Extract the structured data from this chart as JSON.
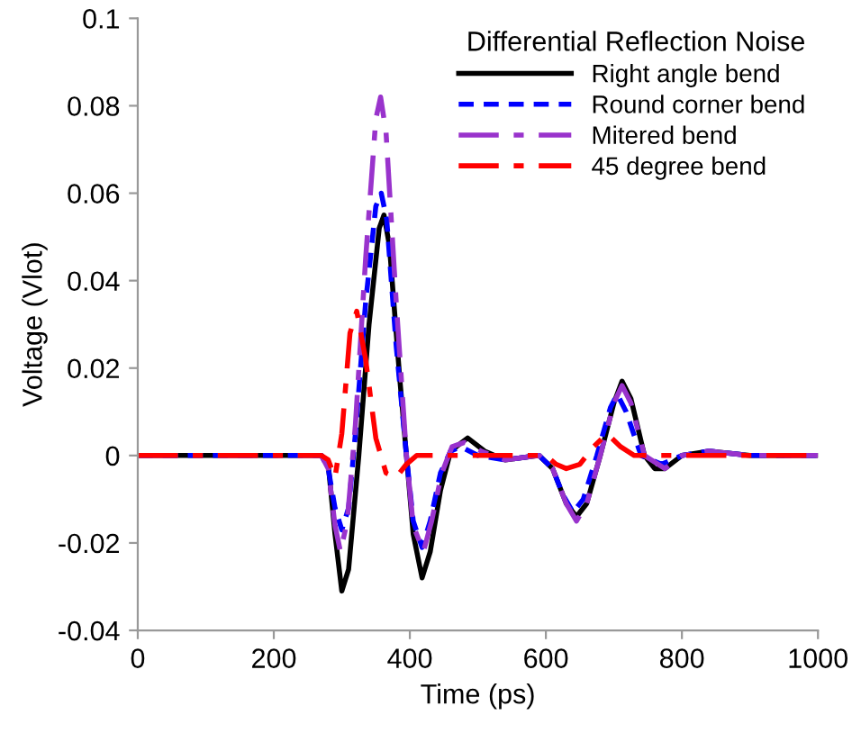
{
  "chart_data": {
    "type": "line",
    "xlabel": "Time (ps)",
    "ylabel": "Voltage (Vlot)",
    "legend_title": "Differential Reflection Noise",
    "legend": "top right",
    "grid": false,
    "xlim": [
      0,
      1000
    ],
    "xticks": [
      0,
      200,
      400,
      600,
      800,
      1000
    ],
    "ylim": [
      -0.04,
      0.1
    ],
    "yticks": [
      -0.04,
      -0.02,
      0,
      0.02,
      0.04,
      0.06,
      0.08,
      0.1
    ],
    "series": [
      {
        "name": "Right angle bend",
        "color": "#000000",
        "line_style": "solid",
        "x": [
          0,
          270,
          280,
          290,
          300,
          310,
          325,
          340,
          355,
          362,
          370,
          385,
          395,
          405,
          418,
          430,
          445,
          460,
          485,
          510,
          540,
          590,
          610,
          630,
          645,
          660,
          680,
          700,
          712,
          725,
          745,
          760,
          775,
          800,
          840,
          900,
          1000
        ],
        "values": [
          0,
          0,
          -0.002,
          -0.018,
          -0.031,
          -0.026,
          0,
          0.03,
          0.052,
          0.055,
          0.048,
          0.018,
          0,
          -0.018,
          -0.028,
          -0.022,
          -0.008,
          0.001,
          0.004,
          0.001,
          -0.001,
          0,
          -0.003,
          -0.011,
          -0.014,
          -0.011,
          0,
          0.012,
          0.017,
          0.013,
          0,
          -0.003,
          -0.003,
          0,
          0.001,
          0,
          0
        ]
      },
      {
        "name": "Round corner bend",
        "color": "#0000ff",
        "line_style": "dashed",
        "x": [
          0,
          270,
          280,
          290,
          300,
          310,
          320,
          335,
          350,
          358,
          366,
          380,
          395,
          405,
          418,
          430,
          445,
          460,
          475,
          500,
          540,
          590,
          610,
          625,
          640,
          655,
          675,
          695,
          705,
          718,
          740,
          770,
          800,
          840,
          900,
          1000
        ],
        "values": [
          0,
          0,
          -0.003,
          -0.012,
          -0.017,
          -0.012,
          0.005,
          0.035,
          0.057,
          0.06,
          0.054,
          0.025,
          0,
          -0.015,
          -0.021,
          -0.015,
          -0.004,
          0.001,
          0.002,
          0,
          -0.001,
          0,
          -0.003,
          -0.009,
          -0.013,
          -0.01,
          0,
          0.011,
          0.014,
          0.01,
          0,
          -0.002,
          0,
          0.001,
          0,
          0
        ]
      },
      {
        "name": "Mitered bend",
        "color": "#9933cc",
        "line_style": "dashdot",
        "x": [
          0,
          270,
          280,
          290,
          298,
          308,
          320,
          335,
          350,
          357,
          365,
          380,
          395,
          405,
          420,
          432,
          447,
          462,
          480,
          505,
          540,
          590,
          610,
          630,
          645,
          660,
          680,
          700,
          712,
          725,
          745,
          775,
          800,
          840,
          900,
          1000
        ],
        "values": [
          0,
          0,
          -0.003,
          -0.016,
          -0.022,
          -0.015,
          0.007,
          0.045,
          0.077,
          0.082,
          0.074,
          0.035,
          0,
          -0.016,
          -0.022,
          -0.015,
          -0.004,
          0.002,
          0.003,
          0.001,
          -0.001,
          0,
          -0.003,
          -0.011,
          -0.015,
          -0.011,
          0,
          0.012,
          0.016,
          0.012,
          0,
          -0.003,
          0,
          0.001,
          0,
          0
        ]
      },
      {
        "name": "45 degree bend",
        "color": "#ff0000",
        "line_style": "dashdot",
        "x": [
          0,
          270,
          280,
          290,
          300,
          312,
          322,
          335,
          350,
          365,
          380,
          395,
          410,
          430,
          500,
          600,
          615,
          630,
          650,
          670,
          690,
          710,
          730,
          800,
          1000
        ],
        "values": [
          0,
          0,
          -0.001,
          -0.005,
          0.005,
          0.028,
          0.033,
          0.022,
          0.004,
          -0.004,
          -0.005,
          -0.002,
          0,
          0,
          0,
          0,
          -0.002,
          -0.003,
          -0.002,
          0.002,
          0.005,
          0.002,
          0,
          0,
          0
        ]
      }
    ]
  }
}
